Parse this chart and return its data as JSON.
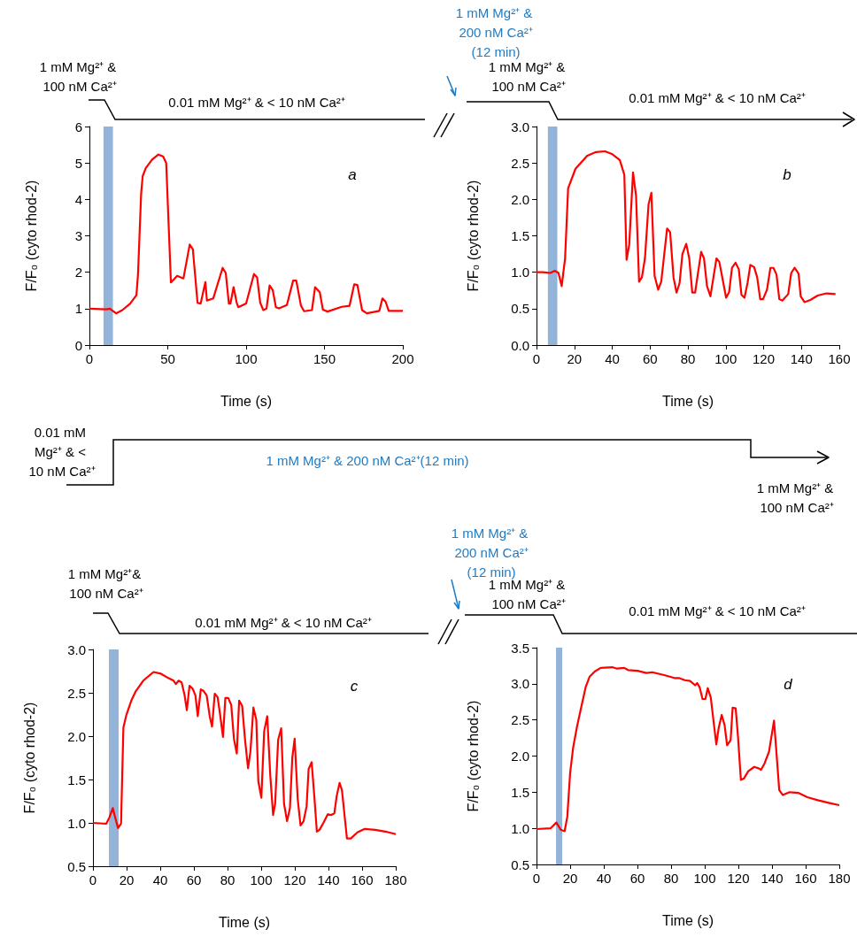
{
  "chart_data": [
    {
      "type": "line",
      "xlabel": "Time (s)",
      "ylabel": "F/F₀ (cyto rhod-2)",
      "xlim": [
        0,
        200
      ],
      "xticks": [
        0,
        50,
        100,
        150,
        200
      ],
      "ylim": [
        0,
        6
      ],
      "yticks": [
        0,
        1,
        2,
        3,
        4,
        5,
        6
      ],
      "marker": "none",
      "bands": [
        {
          "axis": "x",
          "from": 9,
          "to": 15,
          "color": "#94b3d9"
        }
      ],
      "annotations": [
        "a",
        "1 mM Mg²⁺ & 100 nM Ca²⁺",
        "0.01 mM Mg²⁺ & < 10 nM Ca²⁺"
      ],
      "series": [
        {
          "color": "#ff0000",
          "x": [
            0,
            11,
            13,
            17,
            21,
            26,
            30,
            31,
            33,
            34,
            36,
            40,
            44,
            47,
            49,
            52,
            56,
            60,
            64,
            66,
            69,
            71,
            74,
            75,
            79,
            85,
            87,
            89,
            90,
            92,
            94,
            95,
            100,
            105,
            107,
            109,
            111,
            113,
            115,
            117,
            119,
            121,
            126,
            130,
            132,
            135,
            137,
            142,
            144,
            147,
            149,
            152,
            161,
            166,
            169,
            171,
            174,
            177,
            185,
            187,
            189,
            191,
            200
          ],
          "values": [
            1.0,
            0.98,
            1.0,
            0.87,
            0.96,
            1.14,
            1.37,
            1.94,
            4.15,
            4.64,
            4.86,
            5.09,
            5.23,
            5.18,
            5.0,
            1.72,
            1.9,
            1.83,
            2.76,
            2.63,
            1.16,
            1.14,
            1.73,
            1.22,
            1.28,
            2.12,
            1.98,
            1.14,
            1.14,
            1.59,
            1.16,
            1.04,
            1.14,
            1.95,
            1.86,
            1.16,
            0.96,
            1.0,
            1.64,
            1.51,
            1.04,
            1.01,
            1.1,
            1.77,
            1.77,
            1.08,
            0.93,
            0.96,
            1.59,
            1.45,
            0.97,
            0.92,
            1.05,
            1.08,
            1.67,
            1.65,
            0.96,
            0.87,
            0.94,
            1.28,
            1.19,
            0.94,
            0.94
          ]
        }
      ]
    },
    {
      "type": "line",
      "xlabel": "Time (s)",
      "ylabel": "F/F₀ (cyto rhod-2)",
      "xlim": [
        0,
        160
      ],
      "xticks": [
        0,
        20,
        40,
        60,
        80,
        100,
        120,
        140,
        160
      ],
      "ylim": [
        0,
        3
      ],
      "yticks": [
        {
          "value": 0,
          "label": "0.0"
        },
        {
          "value": 0.5,
          "label": "0.5"
        },
        {
          "value": 1,
          "label": "1.0"
        },
        {
          "value": 1.5,
          "label": "1.5"
        },
        {
          "value": 2,
          "label": "2.0"
        },
        {
          "value": 2.5,
          "label": "2.5"
        },
        {
          "value": 3,
          "label": "3.0"
        }
      ],
      "marker": "none",
      "bands": [
        {
          "axis": "x",
          "from": 6,
          "to": 11,
          "color": "#94b3d9"
        }
      ],
      "annotations": [
        "b",
        "1 mM Mg²⁺ & 200 nM Ca²⁺ (12 min)",
        "1 mM Mg²⁺ & 100 nM Ca²⁺",
        "0.01 mM Mg²⁺ & < 10 nM Ca²⁺"
      ],
      "series": [
        {
          "color": "#ff0000",
          "x": [
            0,
            3.4,
            7.3,
            9.7,
            11.6,
            13.3,
            15.1,
            16.7,
            20.6,
            26.8,
            31.5,
            36.2,
            40.1,
            44,
            46.4,
            47.6,
            49,
            51,
            52.6,
            54.2,
            55.7,
            57.3,
            59.2,
            60.7,
            62.4,
            64.3,
            65.9,
            69,
            70.6,
            72.4,
            74,
            75.6,
            77.1,
            79.1,
            80.7,
            82.3,
            83.8,
            87,
            88.5,
            90.1,
            91.9,
            95.1,
            96.6,
            98.3,
            100.2,
            101.8,
            103.3,
            105.2,
            106.9,
            108.3,
            109.9,
            111.5,
            113,
            115,
            116.6,
            118.2,
            119.7,
            121.8,
            123.6,
            125.2,
            126.8,
            128.3,
            129.9,
            133,
            134.6,
            136.4,
            138.5,
            139.6,
            141.6,
            144.7,
            148.6,
            153.3,
            158
          ],
          "values": [
            1.0,
            1.0,
            0.99,
            1.02,
            0.99,
            0.81,
            1.19,
            2.15,
            2.42,
            2.6,
            2.65,
            2.66,
            2.62,
            2.54,
            2.34,
            1.17,
            1.38,
            2.37,
            2.05,
            0.87,
            0.93,
            1.19,
            1.93,
            2.09,
            0.95,
            0.76,
            0.87,
            1.6,
            1.55,
            0.93,
            0.72,
            0.85,
            1.25,
            1.39,
            1.19,
            0.72,
            0.72,
            1.28,
            1.19,
            0.81,
            0.67,
            1.19,
            1.14,
            0.91,
            0.65,
            0.73,
            1.06,
            1.13,
            1.04,
            0.69,
            0.65,
            0.85,
            1.1,
            1.07,
            0.93,
            0.63,
            0.63,
            0.76,
            1.06,
            1.06,
            0.97,
            0.63,
            0.61,
            0.7,
            0.99,
            1.06,
            0.98,
            0.67,
            0.59,
            0.62,
            0.68,
            0.71,
            0.7
          ]
        }
      ]
    },
    {
      "type": "other",
      "annotations": [
        "0.01 mM Mg²⁺ & < 10 nM Ca²⁺",
        "1 mM Mg²⁺ & 200 nM Ca²⁺(12 min)",
        "1 mM Mg²⁺ & 100 nM Ca²⁺"
      ]
    },
    {
      "type": "line",
      "xlabel": "Time (s)",
      "ylabel": "F/F₀ (cyto rhod-2)",
      "xlim": [
        0,
        180
      ],
      "xticks": [
        0,
        20,
        40,
        60,
        80,
        100,
        120,
        140,
        160,
        180
      ],
      "ylim": [
        0.5,
        3
      ],
      "yticks": [
        {
          "value": 0.5,
          "label": "0.5"
        },
        {
          "value": 1,
          "label": "1.0"
        },
        {
          "value": 1.5,
          "label": "1.5"
        },
        {
          "value": 2,
          "label": "2.0"
        },
        {
          "value": 2.5,
          "label": "2.5"
        },
        {
          "value": 3,
          "label": "3.0"
        }
      ],
      "marker": "none",
      "bands": [
        {
          "axis": "x",
          "from": 9.5,
          "to": 15.3,
          "color": "#94b3d9"
        }
      ],
      "annotations": [
        "c",
        "1 mM Mg²⁺& 100 nM Ca²⁺",
        "0.01 mM Mg²⁺ & < 10 nM Ca²⁺"
      ],
      "series": [
        {
          "color": "#ff0000",
          "x": [
            0,
            7.9,
            9.7,
            11.8,
            13.5,
            14.9,
            16.7,
            18.1,
            19.8,
            22.8,
            25.5,
            29.9,
            36,
            40.4,
            44.8,
            47.9,
            49.3,
            50.9,
            52.7,
            54.4,
            55.8,
            57.4,
            59.2,
            60.9,
            62.3,
            64.1,
            65.8,
            67.6,
            69.4,
            70.8,
            72.4,
            74.1,
            75.5,
            77.3,
            78.7,
            80.4,
            82.2,
            83.8,
            85.5,
            86.9,
            88.7,
            90.4,
            92.2,
            93.6,
            95.4,
            97.1,
            98.3,
            100.1,
            101.8,
            103.6,
            105.4,
            107.1,
            108.3,
            110.1,
            111.9,
            113.6,
            115.4,
            117.1,
            118.5,
            119.9,
            121.7,
            123.4,
            125.2,
            127,
            128.2,
            130,
            131.7,
            133.1,
            134.7,
            137,
            139.6,
            141.4,
            143.5,
            144.9,
            146.6,
            148,
            151,
            153.3,
            157.2,
            161.6,
            167.7,
            173.8,
            180
          ],
          "values": [
            1.0,
            0.99,
            1.06,
            1.17,
            1.04,
            0.94,
            0.99,
            2.1,
            2.24,
            2.41,
            2.52,
            2.64,
            2.74,
            2.72,
            2.67,
            2.64,
            2.6,
            2.64,
            2.62,
            2.48,
            2.3,
            2.58,
            2.55,
            2.47,
            2.23,
            2.54,
            2.52,
            2.47,
            2.23,
            2.11,
            2.49,
            2.45,
            2.26,
            1.99,
            2.44,
            2.44,
            2.36,
            1.97,
            1.8,
            2.41,
            2.35,
            1.96,
            1.63,
            1.82,
            2.33,
            2.19,
            1.48,
            1.29,
            2.06,
            2.23,
            1.55,
            1.09,
            1.22,
            1.96,
            2.09,
            1.22,
            1.02,
            1.17,
            1.75,
            1.97,
            1.28,
            0.97,
            1.02,
            1.19,
            1.62,
            1.7,
            1.28,
            0.9,
            0.92,
            1.0,
            1.1,
            1.09,
            1.11,
            1.31,
            1.46,
            1.38,
            0.82,
            0.82,
            0.89,
            0.93,
            0.92,
            0.9,
            0.87
          ]
        }
      ]
    },
    {
      "type": "line",
      "xlabel": "Time (s)",
      "ylabel": "F/F₀ (cyto rhod-2)",
      "xlim": [
        0,
        180
      ],
      "xticks": [
        0,
        20,
        40,
        60,
        80,
        100,
        120,
        140,
        160,
        180
      ],
      "ylim": [
        0.5,
        3.5
      ],
      "yticks": [
        {
          "value": 0.5,
          "label": "0.5"
        },
        {
          "value": 1,
          "label": "1.0"
        },
        {
          "value": 1.5,
          "label": "1.5"
        },
        {
          "value": 2,
          "label": "2.0"
        },
        {
          "value": 2.5,
          "label": "2.5"
        },
        {
          "value": 3,
          "label": "3.0"
        },
        {
          "value": 3.5,
          "label": "3.5"
        }
      ],
      "marker": "none",
      "bands": [
        {
          "axis": "x",
          "from": 11.6,
          "to": 15.3,
          "color": "#94b3d9"
        }
      ],
      "annotations": [
        "d",
        "1 mM Mg²⁺ & 200 nM Ca²⁺ (12 min)",
        "1 mM Mg²⁺ & 100 nM Ca²⁺",
        "0.01 mM Mg²⁺ & < 10 nM Ca²⁺"
      ],
      "series": [
        {
          "color": "#ff0000",
          "x": [
            0,
            8.3,
            11.8,
            14.4,
            16.7,
            18.3,
            20,
            21.8,
            24.1,
            26.7,
            29.3,
            31.6,
            34.6,
            38.1,
            45.1,
            47.8,
            52.2,
            54.4,
            60.1,
            65.3,
            68.8,
            75.9,
            82,
            84.6,
            88.2,
            91.3,
            94.3,
            95.5,
            97,
            98.7,
            100.4,
            101.8,
            103.6,
            105.2,
            106.9,
            108.3,
            110.1,
            111.8,
            113.3,
            115.4,
            116.6,
            118.4,
            119.8,
            121.5,
            123.3,
            125.9,
            129.4,
            132,
            133.5,
            135.6,
            138.2,
            141.2,
            142.6,
            144.3,
            146.4,
            150.5,
            155.8,
            161,
            167.2,
            174.2,
            180
          ],
          "values": [
            0.99,
            1.0,
            1.08,
            0.98,
            0.96,
            1.16,
            1.77,
            2.12,
            2.41,
            2.69,
            2.96,
            3.1,
            3.17,
            3.22,
            3.23,
            3.21,
            3.22,
            3.19,
            3.18,
            3.15,
            3.16,
            3.12,
            3.08,
            3.08,
            3.05,
            3.04,
            2.98,
            3.01,
            2.95,
            2.79,
            2.79,
            2.94,
            2.81,
            2.49,
            2.16,
            2.39,
            2.57,
            2.43,
            2.15,
            2.22,
            2.67,
            2.66,
            2.26,
            1.67,
            1.69,
            1.79,
            1.85,
            1.83,
            1.81,
            1.9,
            2.06,
            2.49,
            2.06,
            1.53,
            1.46,
            1.5,
            1.49,
            1.43,
            1.39,
            1.35,
            1.32
          ]
        }
      ]
    }
  ]
}
